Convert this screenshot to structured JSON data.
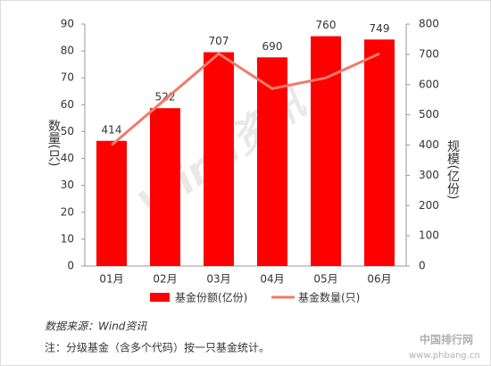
{
  "chart_data": {
    "type": "combo",
    "categories": [
      "01月",
      "02月",
      "03月",
      "04月",
      "05月",
      "06月"
    ],
    "series": [
      {
        "name": "基金份额(亿份)",
        "type": "bar",
        "axis": "y2",
        "color": "#ff0000",
        "values": [
          414,
          522,
          707,
          690,
          760,
          749
        ]
      },
      {
        "name": "基金数量(只)",
        "type": "line",
        "axis": "y",
        "color": "#f07b6b",
        "values": [
          45,
          62,
          79,
          66,
          70,
          79
        ]
      }
    ],
    "ylabel": "数量(只)",
    "y2label": "规模(亿份)",
    "ylim": [
      0,
      90
    ],
    "yticks": [
      0,
      10,
      20,
      30,
      40,
      50,
      60,
      70,
      80,
      90
    ],
    "y2lim": [
      0,
      800
    ],
    "y2ticks": [
      0,
      100,
      200,
      300,
      400,
      500,
      600,
      700,
      800
    ],
    "show_value_labels": true,
    "legend": "bottom"
  },
  "source": "数据来源：Wind资讯",
  "note": "注：分级基金（含多个代码）按一只基金统计。",
  "watermark": "Wind资讯",
  "site_mark": {
    "name": "中国排行网",
    "url": "www.phbang.cn"
  }
}
